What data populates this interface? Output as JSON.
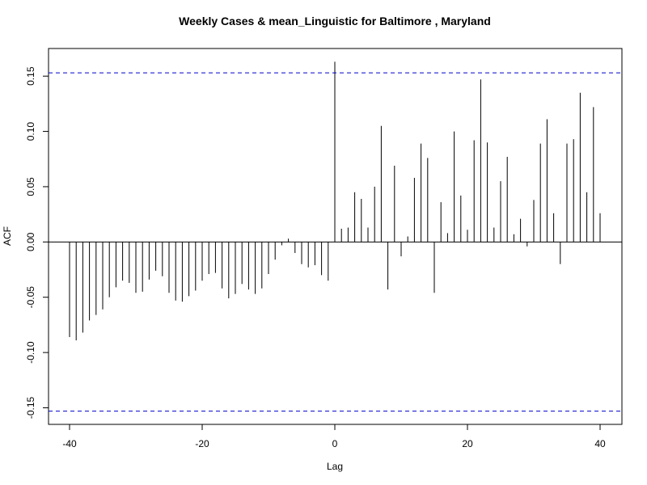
{
  "chart_data": {
    "type": "bar",
    "title": "Weekly Cases & mean_Linguistic for Baltimore , Maryland",
    "xlabel": "Lag",
    "ylabel": "ACF",
    "xlim": [
      -40,
      40
    ],
    "ylim": [
      -0.165,
      0.175
    ],
    "x_ticks": [
      -40,
      -20,
      0,
      20,
      40
    ],
    "y_ticks": [
      -0.15,
      -0.1,
      -0.05,
      0.0,
      0.05,
      0.1,
      0.15
    ],
    "confidence_bound": 0.153,
    "grid": false,
    "colors": {
      "bars": "#000000",
      "bounds": "#0000cc",
      "zero_line": "#000000"
    },
    "lags": [
      -40,
      -39,
      -38,
      -37,
      -36,
      -35,
      -34,
      -33,
      -32,
      -31,
      -30,
      -29,
      -28,
      -27,
      -26,
      -25,
      -24,
      -23,
      -22,
      -21,
      -20,
      -19,
      -18,
      -17,
      -16,
      -15,
      -14,
      -13,
      -12,
      -11,
      -10,
      -9,
      -8,
      -7,
      -6,
      -5,
      -4,
      -3,
      -2,
      -1,
      0,
      1,
      2,
      3,
      4,
      5,
      6,
      7,
      8,
      9,
      10,
      11,
      12,
      13,
      14,
      15,
      16,
      17,
      18,
      19,
      20,
      21,
      22,
      23,
      24,
      25,
      26,
      27,
      28,
      29,
      30,
      31,
      32,
      33,
      34,
      35,
      36,
      37,
      38,
      39,
      40
    ],
    "values": [
      -0.086,
      -0.089,
      -0.082,
      -0.071,
      -0.066,
      -0.061,
      -0.05,
      -0.041,
      -0.035,
      -0.037,
      -0.046,
      -0.045,
      -0.034,
      -0.026,
      -0.031,
      -0.046,
      -0.053,
      -0.054,
      -0.049,
      -0.044,
      -0.035,
      -0.029,
      -0.028,
      -0.042,
      -0.051,
      -0.047,
      -0.038,
      -0.043,
      -0.047,
      -0.042,
      -0.029,
      -0.016,
      -0.003,
      0.003,
      -0.01,
      -0.02,
      -0.023,
      -0.021,
      -0.03,
      -0.035,
      0.163,
      0.012,
      0.013,
      0.045,
      0.039,
      0.013,
      0.05,
      0.105,
      -0.043,
      0.069,
      -0.013,
      0.005,
      0.058,
      0.089,
      0.076,
      -0.046,
      0.036,
      0.008,
      0.1,
      0.042,
      0.011,
      0.092,
      0.147,
      0.09,
      0.013,
      0.055,
      0.077,
      0.007,
      0.021,
      -0.004,
      0.038,
      0.089,
      0.111,
      0.026,
      -0.02,
      0.089,
      0.093,
      0.135,
      0.045,
      0.122,
      0.026
    ]
  }
}
